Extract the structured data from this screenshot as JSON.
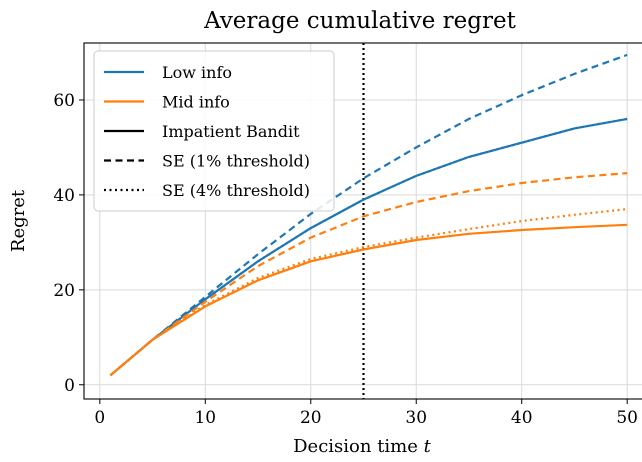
{
  "chart_data": {
    "type": "line",
    "title": "Average cumulative regret",
    "xlabel": "Decision time",
    "xlabel_var": "t",
    "ylabel": "Regret",
    "xlim": [
      -1.5,
      51.5
    ],
    "ylim": [
      -3,
      72
    ],
    "xticks": [
      0,
      10,
      20,
      30,
      40,
      50
    ],
    "yticks": [
      0,
      20,
      40,
      60
    ],
    "grid": true,
    "legend_position": "top-left",
    "vline": {
      "x": 25,
      "style": "dotted",
      "color": "#000000"
    },
    "colors": {
      "low_info": "#1f77b4",
      "mid_info": "#ff7f0e",
      "axes": "#000000",
      "grid": "#d9d9d9"
    },
    "legend": [
      {
        "label": "Low info",
        "color": "#1f77b4",
        "style": "solid"
      },
      {
        "label": "Mid info",
        "color": "#ff7f0e",
        "style": "solid"
      },
      {
        "label": "Impatient Bandit",
        "color": "#000000",
        "style": "solid"
      },
      {
        "label": "SE (1% threshold)",
        "color": "#000000",
        "style": "dashed"
      },
      {
        "label": "SE (4% threshold)",
        "color": "#000000",
        "style": "dotted"
      }
    ],
    "series": [
      {
        "group": "Low info",
        "method": "Impatient Bandit",
        "color": "#1f77b4",
        "style": "solid",
        "x": [
          1,
          5,
          10,
          15,
          20,
          25,
          30,
          35,
          40,
          45,
          50
        ],
        "y": [
          2,
          9.5,
          18,
          26,
          33,
          39,
          44,
          48,
          51,
          54,
          56
        ]
      },
      {
        "group": "Low info",
        "method": "SE (1% threshold)",
        "color": "#1f77b4",
        "style": "dashed",
        "x": [
          1,
          5,
          10,
          15,
          20,
          25,
          30,
          35,
          40,
          45,
          50
        ],
        "y": [
          2,
          9.5,
          18.5,
          27.5,
          36,
          43.5,
          50,
          56,
          61,
          65.5,
          69.5
        ]
      },
      {
        "group": "Low info",
        "method": "SE (4% threshold)",
        "color": "#1f77b4",
        "style": "dotted",
        "x": [
          1,
          5,
          10,
          15,
          20,
          25,
          30,
          35,
          40,
          45,
          50
        ],
        "y": [
          2,
          9.5,
          18,
          26,
          33,
          39,
          44,
          48,
          51,
          54,
          56
        ]
      },
      {
        "group": "Mid info",
        "method": "Impatient Bandit",
        "color": "#ff7f0e",
        "style": "solid",
        "x": [
          1,
          5,
          10,
          15,
          20,
          25,
          30,
          35,
          40,
          45,
          50
        ],
        "y": [
          2,
          9.5,
          16.5,
          22,
          26,
          28.5,
          30.5,
          31.8,
          32.6,
          33.2,
          33.7
        ]
      },
      {
        "group": "Mid info",
        "method": "SE (1% threshold)",
        "color": "#ff7f0e",
        "style": "dashed",
        "x": [
          1,
          5,
          10,
          15,
          20,
          25,
          30,
          35,
          40,
          45,
          50
        ],
        "y": [
          2,
          9.5,
          17.5,
          25,
          31,
          35.5,
          38.5,
          40.8,
          42.5,
          43.7,
          44.6
        ]
      },
      {
        "group": "Mid info",
        "method": "SE (4% threshold)",
        "color": "#ff7f0e",
        "style": "dotted",
        "x": [
          1,
          5,
          10,
          15,
          20,
          25,
          30,
          35,
          40,
          45,
          50
        ],
        "y": [
          2,
          9.5,
          16.8,
          22.5,
          26.5,
          29,
          31,
          32.8,
          34.5,
          35.8,
          37
        ]
      }
    ]
  }
}
